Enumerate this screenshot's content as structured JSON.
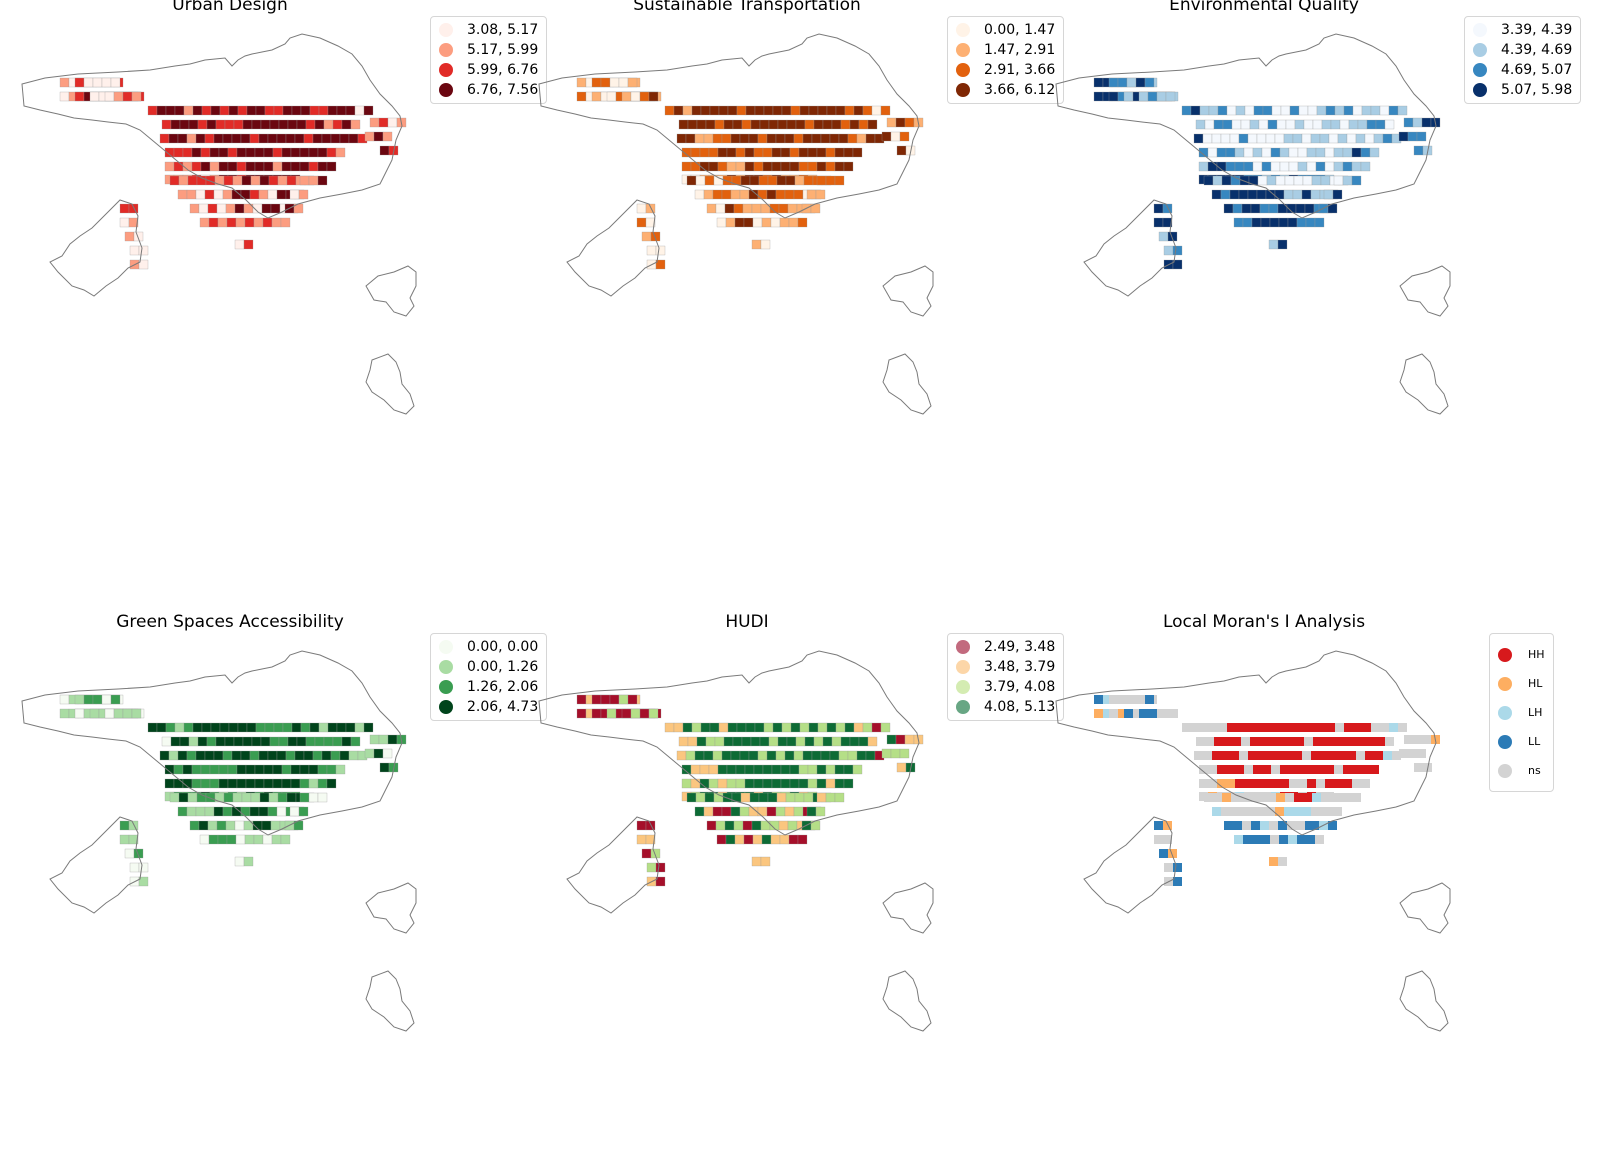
{
  "panels": [
    {
      "title": "Urban Design",
      "colors": [
        "#fff0eb",
        "#fc9d80",
        "#e12b27",
        "#6b0610"
      ],
      "legend": [
        {
          "label": "3.08, 5.17",
          "color": "#fff0eb"
        },
        {
          "label": "5.17, 5.99",
          "color": "#fc9d80"
        },
        {
          "label": "5.99, 6.76",
          "color": "#e12b27"
        },
        {
          "label": "6.76, 7.56",
          "color": "#6b0610"
        }
      ]
    },
    {
      "title": "Sustainable Transportation",
      "colors": [
        "#fff3e7",
        "#fdb073",
        "#e2610e",
        "#7f2704"
      ],
      "legend": [
        {
          "label": "0.00, 1.47",
          "color": "#fff3e7"
        },
        {
          "label": "1.47, 2.91",
          "color": "#fdb073"
        },
        {
          "label": "2.91, 3.66",
          "color": "#e2610e"
        },
        {
          "label": "3.66, 6.12",
          "color": "#7f2704"
        }
      ]
    },
    {
      "title": "Environmental Quality",
      "colors": [
        "#f4f8fd",
        "#a9cde4",
        "#3787c0",
        "#08306b"
      ],
      "legend": [
        {
          "label": "3.39, 4.39",
          "color": "#f4f8fd"
        },
        {
          "label": "4.39, 4.69",
          "color": "#a9cde4"
        },
        {
          "label": "4.69, 5.07",
          "color": "#3787c0"
        },
        {
          "label": "5.07, 5.98",
          "color": "#08306b"
        }
      ]
    },
    {
      "title": "Green Spaces Accessibility",
      "colors": [
        "#f5fbf2",
        "#a9dca3",
        "#3a9d51",
        "#00441b"
      ],
      "legend": [
        {
          "label": "0.00, 0.00",
          "color": "#f5fbf2"
        },
        {
          "label": "0.00, 1.26",
          "color": "#a9dca3"
        },
        {
          "label": "1.26, 2.06",
          "color": "#3a9d51"
        },
        {
          "label": "2.06, 4.73",
          "color": "#00441b"
        }
      ]
    },
    {
      "title": "HUDI",
      "colors": [
        "#a50f2a",
        "#fbc67f",
        "#b5df87",
        "#0d6b35"
      ],
      "legend": [
        {
          "label": "2.49, 3.48",
          "color": "#c26a7e"
        },
        {
          "label": "3.48, 3.79",
          "color": "#fcd6a8"
        },
        {
          "label": "3.79, 4.08",
          "color": "#d4ecb2"
        },
        {
          "label": "4.08, 5.13",
          "color": "#68a684"
        }
      ]
    },
    {
      "title": "Local Moran's I Analysis",
      "colors": [
        "#d7191c",
        "#fdae61",
        "#abd9e9",
        "#2c7bb6",
        "#d3d3d3"
      ],
      "legend": [
        {
          "label": "HH",
          "color": "#d7191c"
        },
        {
          "label": "HL",
          "color": "#fdae61"
        },
        {
          "label": "LH",
          "color": "#abd9e9"
        },
        {
          "label": "LL",
          "color": "#2c7bb6"
        },
        {
          "label": "ns",
          "color": "#d3d3d3"
        }
      ]
    }
  ]
}
